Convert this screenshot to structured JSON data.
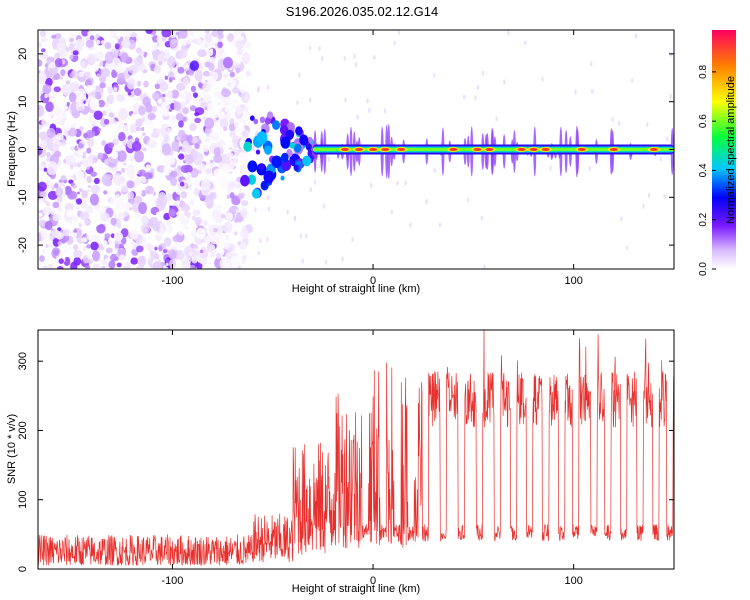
{
  "title": "S196.2026.035.02.12.G14",
  "chart_data": [
    {
      "type": "heatmap",
      "xlabel": "Height of straight line (km)",
      "ylabel": "Frequency (Hz)",
      "xlim": [
        -167,
        150
      ],
      "ylim": [
        -25,
        25
      ],
      "xticks": [
        -100,
        0,
        100
      ],
      "yticks": [
        -20,
        -10,
        0,
        10,
        20
      ],
      "colorbar": {
        "label": "Normalized spectral amplitude",
        "range": [
          0,
          0.97
        ],
        "ticks": [
          0.0,
          0.2,
          0.4,
          0.6,
          0.8
        ]
      },
      "ridge": {
        "x_start": -30,
        "x_end": 150,
        "frequency_hz": 0,
        "peak_amplitude": 0.9,
        "red_peaks_x": [
          -14,
          -7,
          0,
          6,
          14,
          40,
          52,
          58,
          74,
          80,
          86,
          104,
          120,
          140
        ]
      },
      "noise_region": {
        "x_start": -167,
        "x_end": -62,
        "amplitude_range": [
          0.0,
          0.2
        ]
      },
      "transition_region": {
        "x_start": -65,
        "x_end": -30,
        "amplitude_range": [
          0.1,
          0.45
        ]
      }
    },
    {
      "type": "line",
      "xlabel": "Height of straight line (km)",
      "ylabel": "SNR (10 * v/v)",
      "xlim": [
        -167,
        150
      ],
      "ylim": [
        0,
        345
      ],
      "xticks": [
        -100,
        0,
        100
      ],
      "yticks": [
        0,
        100,
        200,
        300
      ],
      "color": "#e8312e",
      "segments": [
        {
          "x_start": -167,
          "x_end": -60,
          "mean": 20,
          "range": [
            5,
            50
          ]
        },
        {
          "x_start": -60,
          "x_end": -40,
          "mean": 35,
          "range": [
            10,
            80
          ]
        },
        {
          "x_start": -40,
          "x_end": -20,
          "mean": 90,
          "range": [
            20,
            185
          ]
        },
        {
          "x_start": -20,
          "x_end": 0,
          "mean": 140,
          "range": [
            30,
            255
          ]
        },
        {
          "x_start": 0,
          "x_end": 25,
          "mean": 180,
          "range": [
            30,
            300
          ]
        },
        {
          "x_start": 25,
          "x_end": 150,
          "mean": 245,
          "range": [
            210,
            345
          ]
        }
      ],
      "dropouts_x": [
        -4,
        5,
        12,
        19,
        26,
        35,
        44,
        53,
        62,
        70,
        78,
        86,
        94,
        101,
        110,
        117,
        125,
        133,
        141,
        148
      ],
      "dropout_level": 40
    }
  ]
}
